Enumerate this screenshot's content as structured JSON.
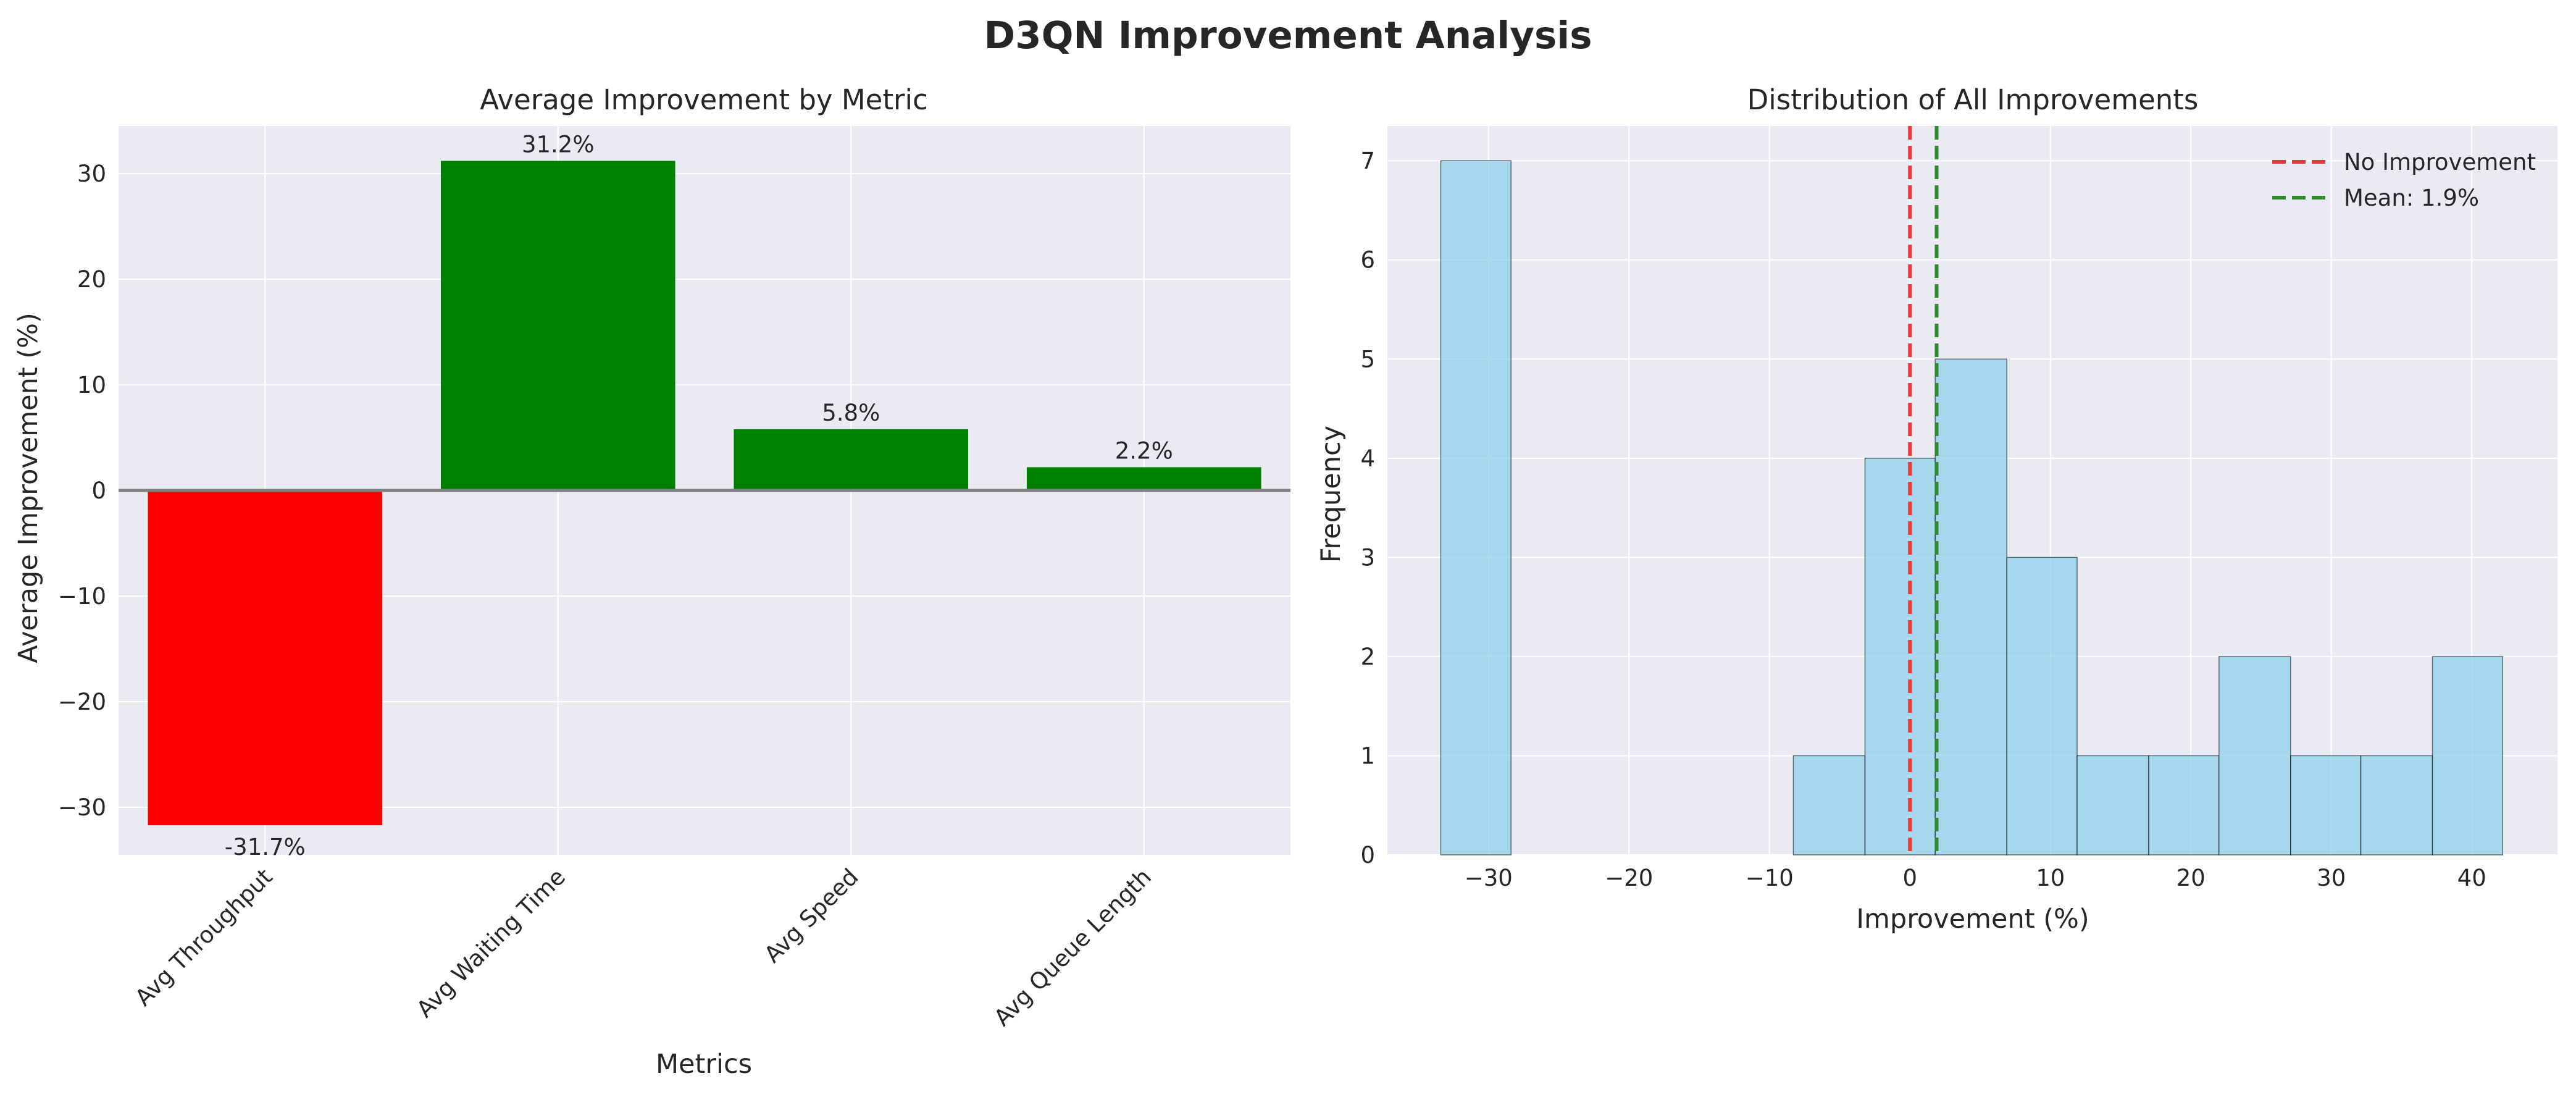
{
  "figure": {
    "title": "D3QN Improvement Analysis"
  },
  "chart_data": [
    {
      "type": "bar",
      "title": "Average Improvement by Metric",
      "xlabel": "Metrics",
      "ylabel": "Average Improvement (%)",
      "categories": [
        "Avg Throughput",
        "Avg Waiting Time",
        "Avg Speed",
        "Avg Queue Length"
      ],
      "values": [
        -31.7,
        31.2,
        5.8,
        2.2
      ],
      "data_labels": [
        "-31.7%",
        "31.2%",
        "5.8%",
        "2.2%"
      ],
      "ylim": [
        -34.5,
        34.5
      ],
      "yticks": [
        -30,
        -20,
        -10,
        0,
        10,
        20,
        30
      ],
      "ytick_labels": [
        "−30",
        "−20",
        "−10",
        "0",
        "10",
        "20",
        "30"
      ],
      "grid": true,
      "colors": {
        "negative": "#ff0000",
        "positive": "#008000",
        "baseline": "#808080"
      }
    },
    {
      "type": "bar",
      "subtype": "histogram",
      "title": "Distribution of All Improvements",
      "xlabel": "Improvement (%)",
      "ylabel": "Frequency",
      "bins": [
        {
          "start": -33.4,
          "end": -28.4,
          "count": 7
        },
        {
          "start": -28.4,
          "end": -23.4,
          "count": 0
        },
        {
          "start": -23.4,
          "end": -18.3,
          "count": 0
        },
        {
          "start": -18.3,
          "end": -13.3,
          "count": 0
        },
        {
          "start": -13.3,
          "end": -8.3,
          "count": 0
        },
        {
          "start": -8.3,
          "end": -3.2,
          "count": 1
        },
        {
          "start": -3.2,
          "end": 1.8,
          "count": 4
        },
        {
          "start": 1.8,
          "end": 6.9,
          "count": 5
        },
        {
          "start": 6.9,
          "end": 11.9,
          "count": 3
        },
        {
          "start": 11.9,
          "end": 17.0,
          "count": 1
        },
        {
          "start": 17.0,
          "end": 22.0,
          "count": 1
        },
        {
          "start": 22.0,
          "end": 27.1,
          "count": 2
        },
        {
          "start": 27.1,
          "end": 32.1,
          "count": 1
        },
        {
          "start": 32.1,
          "end": 37.2,
          "count": 1
        },
        {
          "start": 37.2,
          "end": 42.2,
          "count": 2
        }
      ],
      "xlim": [
        -37.2,
        46.1
      ],
      "ylim": [
        0,
        7.35
      ],
      "xticks": [
        -30,
        -20,
        -10,
        0,
        10,
        20,
        30,
        40
      ],
      "xtick_labels": [
        "−30",
        "−20",
        "−10",
        "0",
        "10",
        "20",
        "30",
        "40"
      ],
      "yticks": [
        0,
        1,
        2,
        3,
        4,
        5,
        6,
        7
      ],
      "ytick_labels": [
        "0",
        "1",
        "2",
        "3",
        "4",
        "5",
        "6",
        "7"
      ],
      "grid": true,
      "bar_color": "#87ceeb",
      "vlines": [
        {
          "x": 0,
          "label": "No Improvement",
          "color": "#e8383a"
        },
        {
          "x": 1.9,
          "label": "Mean: 1.9%",
          "color": "#2e8b2e"
        }
      ],
      "legend": {
        "placement": "top-right"
      }
    }
  ]
}
